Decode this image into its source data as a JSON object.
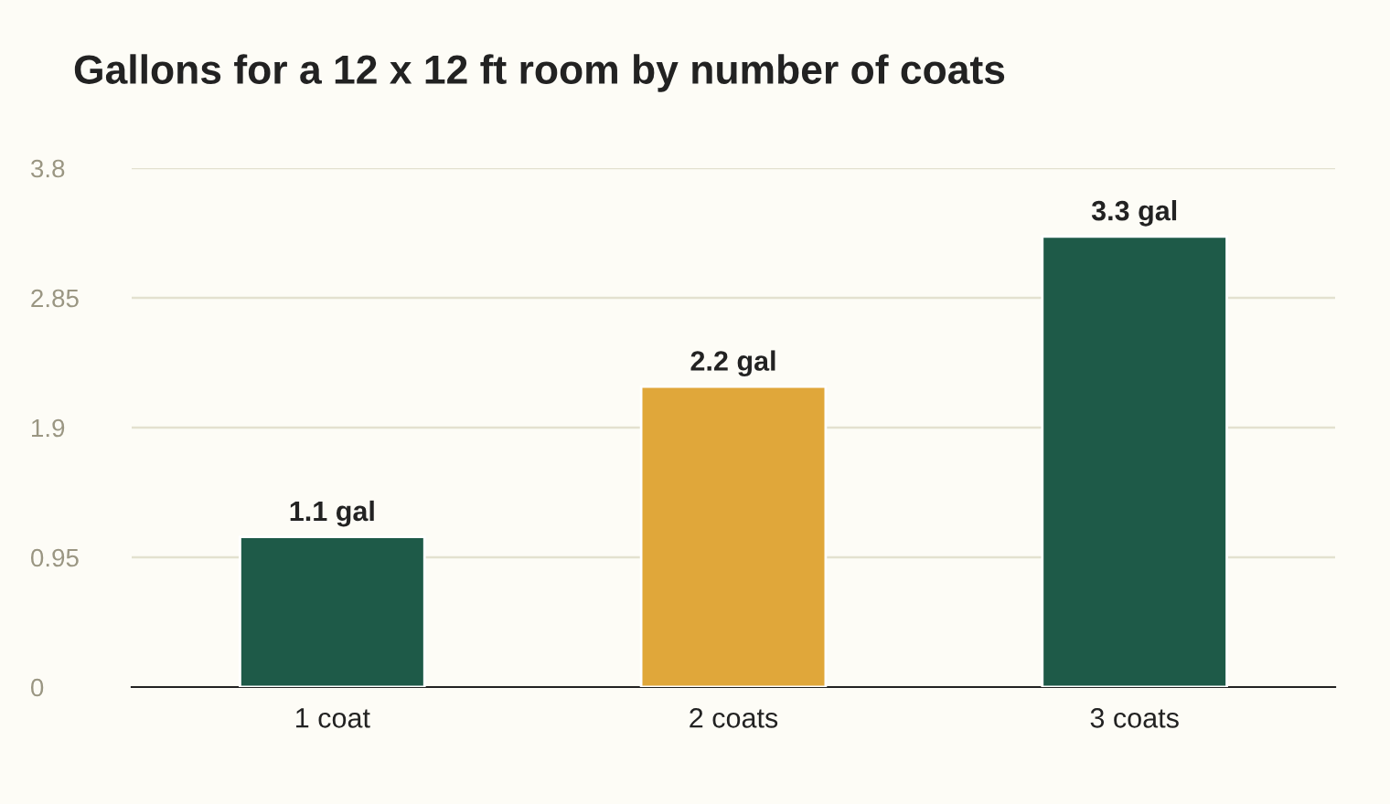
{
  "chart_data": {
    "type": "bar",
    "title": "Gallons for a 12 x 12 ft room by number of coats",
    "categories": [
      "1 coat",
      "2 coats",
      "3 coats"
    ],
    "values": [
      1.1,
      2.2,
      3.3
    ],
    "value_labels": [
      "1.1 gal",
      "2.2 gal",
      "3.3 gal"
    ],
    "colors": [
      "#1e5a48",
      "#e0a73a",
      "#1e5a48"
    ],
    "ylim": [
      0,
      3.8
    ],
    "yticks": [
      0,
      0.95,
      1.9,
      2.85,
      3.8
    ],
    "grid": "y",
    "legend": false
  }
}
